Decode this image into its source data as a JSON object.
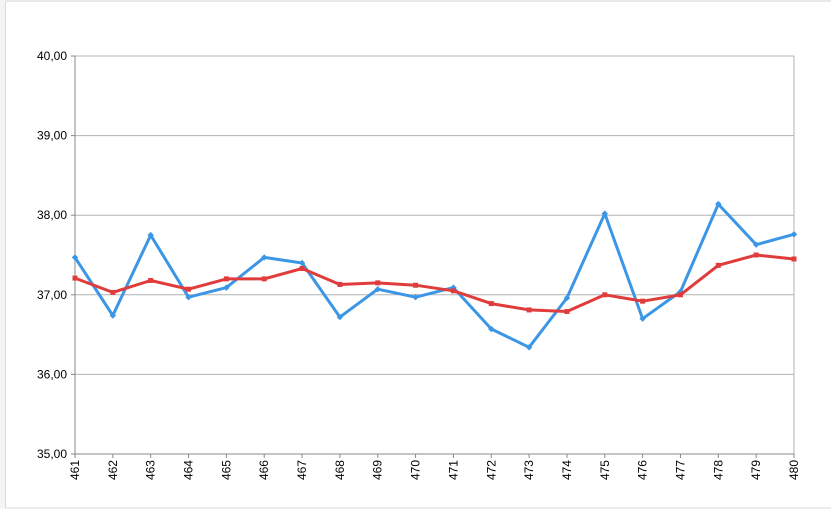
{
  "chart_data": {
    "type": "line",
    "title": "",
    "xlabel": "",
    "ylabel": "",
    "categories": [
      "461",
      "462",
      "463",
      "464",
      "465",
      "466",
      "467",
      "468",
      "469",
      "470",
      "471",
      "472",
      "473",
      "474",
      "475",
      "476",
      "477",
      "478",
      "479",
      "480"
    ],
    "y_tick_labels": [
      "35,00",
      "36,00",
      "37,00",
      "38,00",
      "39,00",
      "40,00"
    ],
    "ylim": [
      35,
      40
    ],
    "y_ticks": [
      35,
      36,
      37,
      38,
      39,
      40
    ],
    "grid": true,
    "legend": "none",
    "series": [
      {
        "color": "#3c96e6",
        "values": [
          37.47,
          36.74,
          37.75,
          36.97,
          37.09,
          37.47,
          37.4,
          36.72,
          37.07,
          36.97,
          37.09,
          36.57,
          36.34,
          36.96,
          38.02,
          36.7,
          37.04,
          38.14,
          37.63,
          37.76
        ]
      },
      {
        "color": "#e03c3c",
        "values": [
          37.21,
          37.03,
          37.18,
          37.07,
          37.2,
          37.2,
          37.33,
          37.13,
          37.15,
          37.12,
          37.05,
          36.89,
          36.81,
          36.79,
          37.0,
          36.92,
          37.0,
          37.37,
          37.5,
          37.45
        ]
      }
    ]
  }
}
